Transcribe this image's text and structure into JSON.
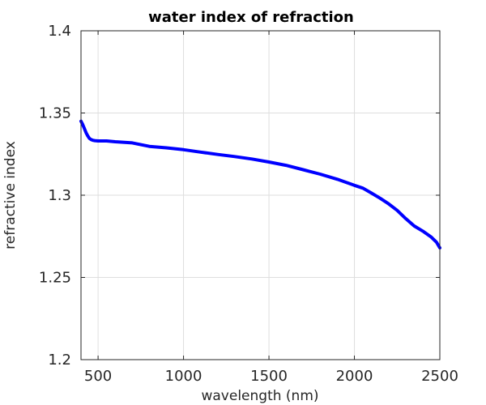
{
  "chart_data": {
    "type": "line",
    "title": "water index of refraction",
    "xlabel": "wavelength (nm)",
    "ylabel": "refractive index",
    "xlim": [
      400,
      2500
    ],
    "ylim": [
      1.2,
      1.4
    ],
    "xticks": [
      500,
      1000,
      1500,
      2000,
      2500
    ],
    "xtick_labels": [
      "500",
      "1000",
      "1500",
      "2000",
      "2500"
    ],
    "yticks": [
      1.2,
      1.25,
      1.3,
      1.35,
      1.4
    ],
    "ytick_labels": [
      "1.2",
      "1.25",
      "1.3",
      "1.35",
      "1.4"
    ],
    "grid": true,
    "series_color": "#0000ff",
    "series": [
      {
        "x": [
          400,
          410,
          420,
          430,
          440,
          450,
          460,
          470,
          480,
          500,
          550,
          600,
          700,
          800,
          900,
          1000,
          1100,
          1200,
          1300,
          1400,
          1500,
          1600,
          1700,
          1800,
          1900,
          2000,
          2050,
          2100,
          2150,
          2200,
          2250,
          2300,
          2350,
          2400,
          2450,
          2480,
          2500
        ],
        "y": [
          1.345,
          1.343,
          1.3405,
          1.338,
          1.336,
          1.3345,
          1.3338,
          1.3334,
          1.3332,
          1.333,
          1.333,
          1.3325,
          1.3318,
          1.3297,
          1.3288,
          1.3277,
          1.3262,
          1.3248,
          1.3235,
          1.322,
          1.3202,
          1.3182,
          1.3155,
          1.3128,
          1.3097,
          1.306,
          1.3043,
          1.3013,
          1.2982,
          1.2948,
          1.2908,
          1.2858,
          1.2813,
          1.2782,
          1.2745,
          1.2715,
          1.268
        ]
      }
    ]
  }
}
